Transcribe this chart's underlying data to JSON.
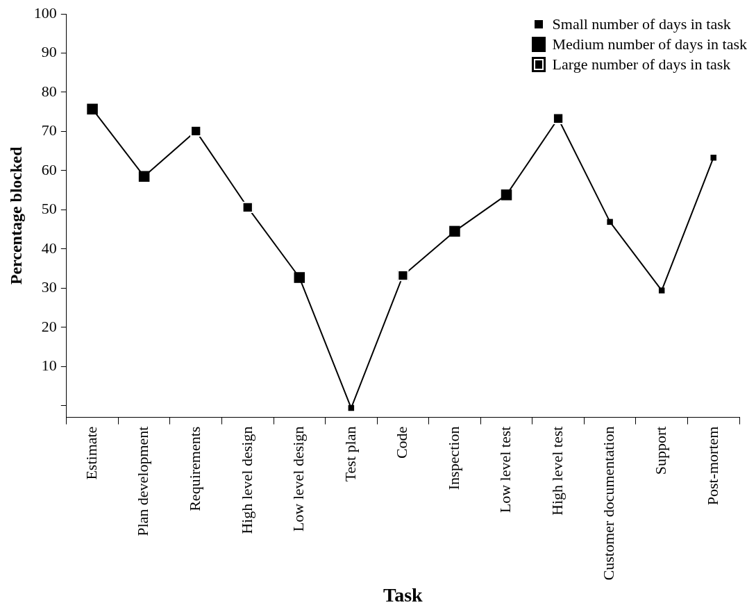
{
  "chart_data": {
    "type": "line",
    "xlabel": "Task",
    "ylabel": "Percentage blocked",
    "categories": [
      "Estimate",
      "Plan development",
      "Requirements",
      "High level design",
      "Low level design",
      "Test plan",
      "Code",
      "Inspection",
      "Low level test",
      "High level test",
      "Customer documentation",
      "Support",
      "Post-mortem"
    ],
    "series": [
      {
        "type": "line",
        "color": "#000000",
        "marker": "none",
        "values": [
          75.7,
          58.5,
          70.1,
          50.6,
          32.7,
          -0.6,
          33.2,
          44.5,
          53.8,
          73.3,
          46.9,
          29.4,
          63.3
        ]
      },
      {
        "type": "scatter",
        "name": "Small number of days in task",
        "color": "#000000",
        "marker": "square",
        "values": [
          null,
          null,
          null,
          null,
          null,
          -0.6,
          null,
          null,
          null,
          null,
          46.9,
          29.4,
          63.3
        ]
      },
      {
        "type": "scatter",
        "name": "Medium number of days in task",
        "color": "#000000",
        "marker": "square",
        "values": [
          75.7,
          58.5,
          null,
          null,
          32.7,
          null,
          null,
          44.5,
          53.8,
          null,
          null,
          null,
          null
        ]
      },
      {
        "type": "scatter",
        "name": "Large number of days in task",
        "color": "#000000",
        "marker": "square",
        "values": [
          null,
          null,
          70.1,
          50.6,
          null,
          null,
          33.2,
          null,
          null,
          73.3,
          null,
          null,
          null
        ]
      }
    ],
    "ylim": [
      -3,
      100
    ],
    "yticks": [
      {
        "value": 0,
        "label": null
      },
      10,
      20,
      30,
      40,
      50,
      60,
      70,
      80,
      90,
      100
    ],
    "grid": false,
    "legend": "top right",
    "line_style": "solid"
  }
}
